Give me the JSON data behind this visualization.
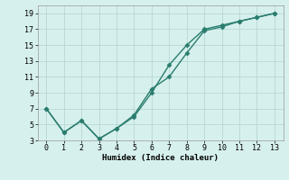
{
  "line1_x": [
    0,
    1,
    2,
    3,
    4,
    5,
    6,
    7,
    8,
    9,
    10,
    11,
    12,
    13
  ],
  "line1_y": [
    7,
    4,
    5.5,
    3.2,
    4.5,
    6,
    9,
    12.5,
    15,
    17,
    17.5,
    18,
    18.5,
    19
  ],
  "line2_x": [
    0,
    1,
    2,
    3,
    4,
    5,
    6,
    7,
    8,
    9,
    10,
    11,
    12,
    13
  ],
  "line2_y": [
    7,
    4,
    5.5,
    3.2,
    4.5,
    6.2,
    9.5,
    11,
    14,
    16.8,
    17.3,
    18.0,
    18.5,
    19
  ],
  "line_color": "#2a7d6e",
  "bg_color": "#d6f0ed",
  "grid_color": "#b8d8d4",
  "xlabel": "Humidex (Indice chaleur)",
  "xlim": [
    -0.5,
    13.5
  ],
  "ylim": [
    3,
    20
  ],
  "xticks": [
    0,
    1,
    2,
    3,
    4,
    5,
    6,
    7,
    8,
    9,
    10,
    11,
    12,
    13
  ],
  "yticks": [
    3,
    5,
    7,
    9,
    11,
    13,
    15,
    17,
    19
  ],
  "marker": "D",
  "markersize": 2.5,
  "linewidth": 1.0
}
